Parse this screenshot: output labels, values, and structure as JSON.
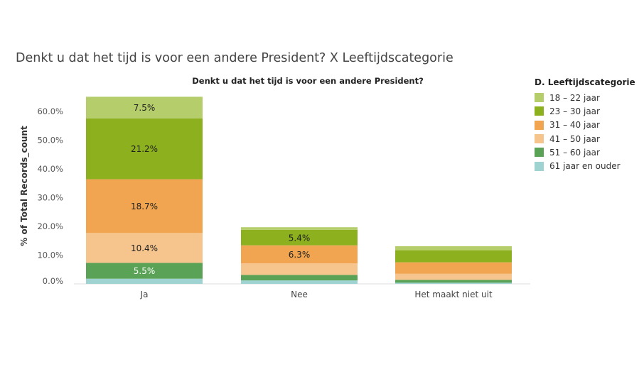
{
  "page_title": "Denkt u dat het tijd is voor een andere President? X Leeftijdscategorie",
  "chart_data": {
    "type": "bar",
    "stacked": true,
    "title": "Denkt u dat het tijd is voor een andere President?",
    "xlabel": "",
    "ylabel": "% of Total Records_count",
    "y_ticks": [
      "0.0%",
      "10.0%",
      "20.0%",
      "30.0%",
      "40.0%",
      "50.0%",
      "60.0%"
    ],
    "ylim": [
      0,
      65
    ],
    "grid": false,
    "legend_position": "right",
    "legend_title": "D. Leeftijdscategorie",
    "categories": [
      "Ja",
      "Nee",
      "Het maakt niet uit"
    ],
    "series": [
      {
        "name": "61 jaar en ouder",
        "color": "#9fd3d1",
        "values": [
          1.8,
          1.2,
          0.4
        ],
        "labels": [
          "",
          "",
          ""
        ]
      },
      {
        "name": "51 – 60 jaar",
        "color": "#5aa356",
        "values": [
          5.5,
          1.9,
          1.0
        ],
        "labels": [
          "5.5%",
          "",
          ""
        ]
      },
      {
        "name": "41 – 50 jaar",
        "color": "#f6c48d",
        "values": [
          10.4,
          4.0,
          2.1
        ],
        "labels": [
          "10.4%",
          "",
          ""
        ]
      },
      {
        "name": "31 – 40 jaar",
        "color": "#f1a551",
        "values": [
          18.7,
          6.3,
          4.0
        ],
        "labels": [
          "18.7%",
          "6.3%",
          ""
        ]
      },
      {
        "name": "23 – 30 jaar",
        "color": "#8db01f",
        "values": [
          21.2,
          5.4,
          4.2
        ],
        "labels": [
          "21.2%",
          "5.4%",
          ""
        ]
      },
      {
        "name": "18 – 22 jaar",
        "color": "#b5cd6a",
        "values": [
          7.5,
          0.9,
          1.4
        ],
        "labels": [
          "7.5%",
          "",
          ""
        ]
      }
    ]
  }
}
